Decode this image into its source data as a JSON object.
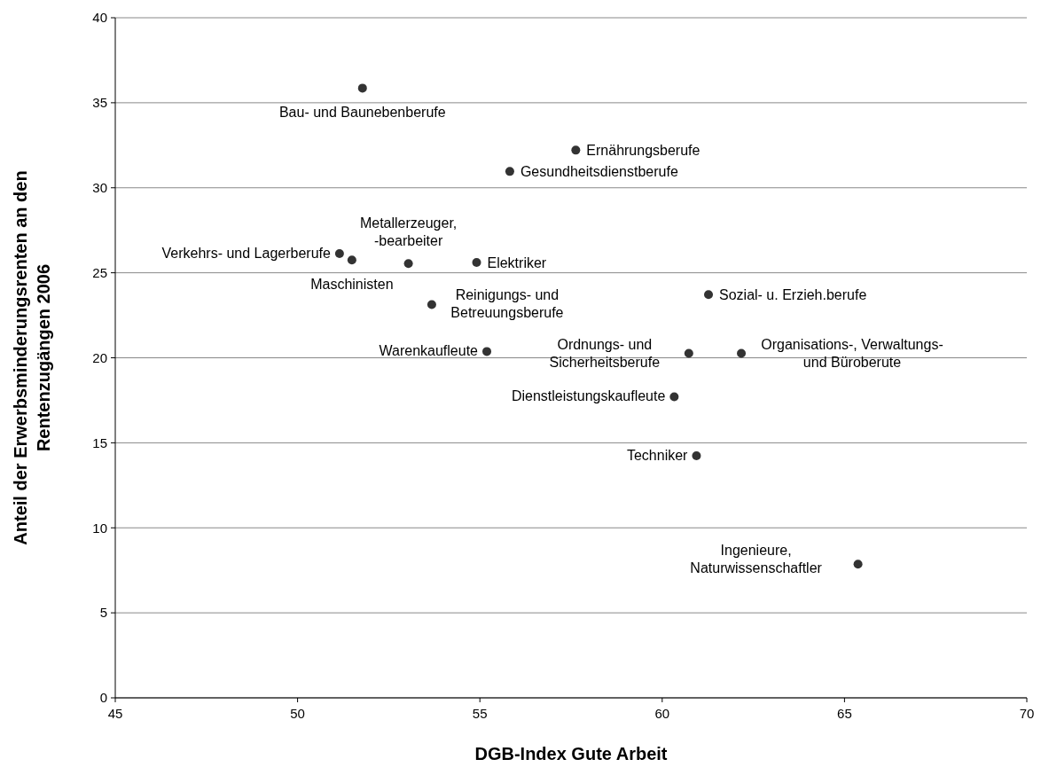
{
  "chart_data": {
    "type": "scatter",
    "xlabel": "DGB-Index Gute Arbeit",
    "ylabel": "Anteil der Erwerbsminderungsrenten an den\nRentenzugängen 2006",
    "xlim": [
      45,
      70
    ],
    "xticks": [
      45,
      50,
      55,
      60,
      65,
      70
    ],
    "ylim": [
      0,
      40
    ],
    "yticks": [
      0,
      5,
      10,
      15,
      20,
      25,
      30,
      35,
      40
    ],
    "grid": "y",
    "marker": "circle",
    "series": [
      {
        "color": "#333333",
        "x": [
          51.78,
          57.63,
          55.82,
          51.15,
          51.49,
          53.04,
          54.91,
          53.68,
          61.27,
          55.19,
          60.73,
          62.17,
          60.33,
          60.94,
          65.37
        ],
        "values": [
          35.86,
          32.21,
          30.96,
          26.13,
          25.75,
          25.54,
          25.61,
          23.13,
          23.72,
          20.37,
          20.26,
          20.26,
          17.71,
          14.24,
          7.86
        ]
      }
    ],
    "annotations": [
      {
        "text": "Bau- und Baunebenberufe",
        "x": 51.78,
        "y": 35.86
      },
      {
        "text": "Ernährungsberufe",
        "x": 57.63,
        "y": 32.21
      },
      {
        "text": "Gesundheitsdienstberufe",
        "x": 55.82,
        "y": 30.96
      },
      {
        "text": "Verkehrs- und Lagerberufe",
        "x": 51.15,
        "y": 26.13
      },
      {
        "text": "Maschinisten",
        "x": 51.49,
        "y": 25.75
      },
      {
        "text": "Metallerzeuger,\n-bearbeiter",
        "x": 53.04,
        "y": 25.54
      },
      {
        "text": "Elektriker",
        "x": 54.91,
        "y": 25.61
      },
      {
        "text": "Reinigungs- und\nBetreuungsberufe",
        "x": 53.68,
        "y": 23.13
      },
      {
        "text": "Sozial- u. Erzieh.berufe",
        "x": 61.27,
        "y": 23.72
      },
      {
        "text": "Warenkaufleute",
        "x": 55.19,
        "y": 20.37
      },
      {
        "text": "Ordnungs- und\nSicherheitsberufe",
        "x": 60.73,
        "y": 20.26
      },
      {
        "text": "Organisations-, Verwaltungs-\nund Büroberute",
        "x": 62.17,
        "y": 20.26
      },
      {
        "text": "Dienstleistungskaufleute",
        "x": 60.33,
        "y": 17.71
      },
      {
        "text": "Techniker",
        "x": 60.94,
        "y": 14.24
      },
      {
        "text": "Ingenieure,\nNaturwissenschaftler",
        "x": 65.37,
        "y": 7.86
      }
    ]
  }
}
